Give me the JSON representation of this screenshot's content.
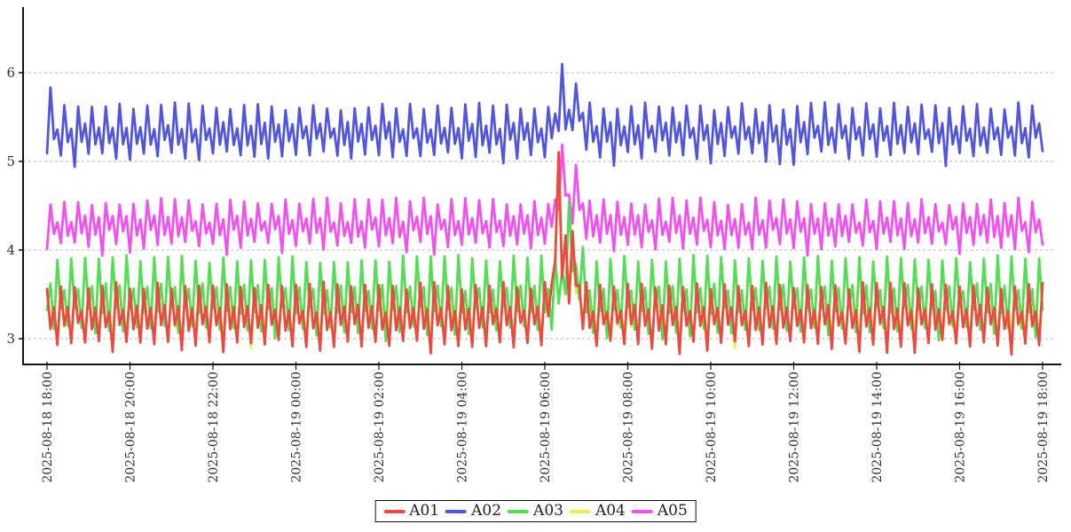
{
  "chart_data": {
    "type": "line",
    "title": "",
    "background": "#ffffff",
    "axis_color": "#141414",
    "grid_color": "#b4b4b4",
    "text_color": "#333333",
    "grid": "horizontal-dashed",
    "x_axis": {
      "start": "2025-08-18 18:00",
      "end": "2025-08-19 18:00",
      "tick_interval_hours": 2,
      "label_rotation_deg": 90,
      "tick_labels": [
        "2025-08-18 18:00",
        "2025-08-18 20:00",
        "2025-08-18 22:00",
        "2025-08-19 00:00",
        "2025-08-19 02:00",
        "2025-08-19 04:00",
        "2025-08-19 06:00",
        "2025-08-19 08:00",
        "2025-08-19 10:00",
        "2025-08-19 12:00",
        "2025-08-19 14:00",
        "2025-08-19 16:00",
        "2025-08-19 18:00"
      ]
    },
    "y_axis": {
      "tick_labels": [
        "3",
        "4",
        "5",
        "6"
      ],
      "ticks": [
        3,
        4,
        5,
        6
      ],
      "min": 2.72,
      "max": 6.66
    },
    "oscillation": {
      "sample_minutes": 5,
      "period_minutes": 20,
      "shape": [
        1.0,
        0.28,
        0.6,
        0.0
      ]
    },
    "legend": {
      "position": "bottom-center",
      "entries": [
        "A01",
        "A02",
        "A03",
        "A04",
        "A05"
      ]
    },
    "series": [
      {
        "name": "A01",
        "color": "#ea4b40",
        "draw_order": 5,
        "phase": 0,
        "min": 2.95,
        "max": 3.6,
        "peak_value": 5.15,
        "peak_time": "2025-08-19 06:20",
        "envelope": [
          [
            0,
            0
          ],
          [
            12.0,
            0
          ],
          [
            12.167,
            0.3
          ],
          [
            12.333,
            1.55
          ],
          [
            12.417,
            0.55
          ],
          [
            12.5,
            0.8
          ],
          [
            12.583,
            0.45
          ],
          [
            12.667,
            0.6
          ],
          [
            12.833,
            0.25
          ],
          [
            13.05,
            0
          ],
          [
            24,
            0
          ]
        ]
      },
      {
        "name": "A02",
        "color": "#5156dc",
        "draw_order": 4,
        "phase": 1,
        "min": 5.07,
        "max": 5.62,
        "peak_value": 6.1,
        "peak_time": "2025-08-19 06:25",
        "envelope": [
          [
            0,
            0
          ],
          [
            0.083,
            0.18
          ],
          [
            0.167,
            0
          ],
          [
            12.05,
            0
          ],
          [
            12.25,
            0.12
          ],
          [
            12.417,
            0.5
          ],
          [
            12.5,
            0.18
          ],
          [
            12.75,
            0.3
          ],
          [
            12.92,
            0.1
          ],
          [
            13.15,
            0
          ],
          [
            24,
            0
          ]
        ]
      },
      {
        "name": "A03",
        "color": "#54dd55",
        "draw_order": 3,
        "phase": 3,
        "min": 3.1,
        "max": 3.9,
        "peak_value": 4.6,
        "peak_time": "2025-08-19 06:35",
        "envelope": [
          [
            0,
            0
          ],
          [
            12.25,
            0
          ],
          [
            12.417,
            0.2
          ],
          [
            12.583,
            0.68
          ],
          [
            12.7,
            0.28
          ],
          [
            12.833,
            0.33
          ],
          [
            13.0,
            0
          ],
          [
            24,
            0
          ]
        ]
      },
      {
        "name": "A04",
        "color": "#eded55",
        "draw_order": 2,
        "phase": 0,
        "min": 3.02,
        "max": 3.55,
        "peak_value": 5.05,
        "peak_time": "2025-08-19 06:20",
        "envelope": [
          [
            0,
            0
          ],
          [
            12.0,
            0
          ],
          [
            12.167,
            0.28
          ],
          [
            12.333,
            1.5
          ],
          [
            12.417,
            0.5
          ],
          [
            12.5,
            0.74
          ],
          [
            12.583,
            0.42
          ],
          [
            12.667,
            0.55
          ],
          [
            12.833,
            0.22
          ],
          [
            13.05,
            0
          ],
          [
            24,
            0
          ]
        ]
      },
      {
        "name": "A05",
        "color": "#ef52ef",
        "draw_order": 1,
        "phase": 1,
        "min": 4.05,
        "max": 4.55,
        "peak_value": 5.2,
        "peak_time": "2025-08-19 06:25",
        "envelope": [
          [
            0,
            0
          ],
          [
            12.1,
            0
          ],
          [
            12.25,
            0.18
          ],
          [
            12.417,
            0.62
          ],
          [
            12.583,
            0.28
          ],
          [
            12.75,
            0.42
          ],
          [
            12.917,
            0.16
          ],
          [
            13.1,
            0
          ],
          [
            24,
            0
          ]
        ]
      }
    ]
  }
}
